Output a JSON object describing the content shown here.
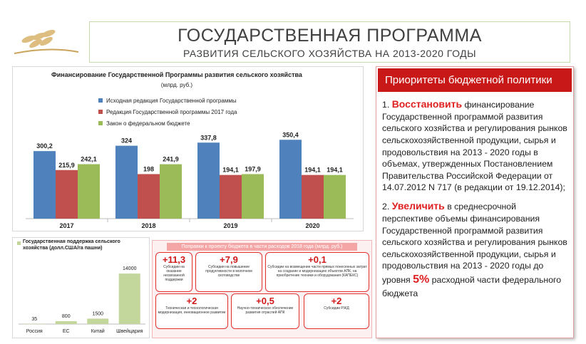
{
  "header": {
    "title": "ГОСУДАРСТВЕННАЯ ПРОГРАММА",
    "subtitle": "РАЗВИТИЯ СЕЛЬСКОГО ХОЗЯЙСТВА НА 2013-2020 ГОДЫ"
  },
  "chart_data": [
    {
      "type": "bar",
      "title": "Финансирование Государственной Программы развития сельского хозяйства",
      "subtitle": "(млрд. руб.)",
      "categories": [
        "2017",
        "2018",
        "2019",
        "2020"
      ],
      "series": [
        {
          "name": "Исходная редакция Государственной программы",
          "color": "#4f81bd",
          "values": [
            300.2,
            324,
            337.8,
            350.4
          ],
          "value_labels": [
            "300,2",
            "324",
            "337,8",
            "350,4"
          ]
        },
        {
          "name": "Редакция Государственной программы 2017 года",
          "color": "#c0504d",
          "values": [
            215.9,
            198,
            194.1,
            194.1
          ],
          "value_labels": [
            "215,9",
            "198",
            "194,1",
            "194,1"
          ]
        },
        {
          "name": "Закон о федеральном бюджете",
          "color": "#9bbb59",
          "values": [
            242.1,
            241.9,
            197.9,
            194.1
          ],
          "value_labels": [
            "242,1",
            "241,9",
            "197,9",
            "194,1"
          ]
        }
      ],
      "ylim": [
        0,
        500
      ]
    },
    {
      "type": "bar",
      "title": "Государственная поддержка сельского хозяйства (долл.США/га пашни)",
      "categories": [
        "Россия",
        "ЕС",
        "Китай",
        "Швейцария"
      ],
      "values": [
        35,
        800,
        1500,
        14000
      ],
      "color": "#c3d69b",
      "ylim": [
        0,
        16000
      ]
    }
  ],
  "amendments": {
    "title": "Поправки к проекту бюджета в части расходов 2018 года (млрд. руб.)",
    "items": [
      {
        "value": "+11,3",
        "text": "Субсидии на оказание несвязанной поддержки"
      },
      {
        "value": "+7,9",
        "text": "Субсидии на повышение продуктивности в молочном скотоводстве"
      },
      {
        "value": "+0,1",
        "text": "Субсидии на возмещение части прямых понесенных затрат на создание и модернизацию объектов АПК, на приобретение техники и оборудования (КАПЕКС)"
      },
      {
        "value": "+2",
        "text": "Техническая и технологическая модернизация, инновационное развитие"
      },
      {
        "value": "+0,5",
        "text": "Научно-техническое обеспечение развития отраслей АПК"
      },
      {
        "value": "+2",
        "text": "Субсидии РЖД"
      }
    ]
  },
  "priorities": {
    "title": "Приоритеты бюджетной политики",
    "items": [
      [
        "1. ",
        "Восстановить",
        " финансирование Государственной программой развития сельского хозяйства и регулирования рынков сельскохозяйственной продукции, сырья и продовольствия на 2013 - 2020 годы в объемах, утвержденных Постановлением Правительства Российской Федерации от 14.07.2012 N 717 (в редакции от 19.12.2014);"
      ],
      [
        "2. ",
        "Увеличить",
        " в среднесрочной перспективе объемы финансирования Государственной программой развития сельского хозяйства и регулирования рынков сельскохозяйственной продукции, сырья и продовольствия на 2013 - 2020 годы до уровня ",
        "5%",
        " расходной части федерального бюджета"
      ]
    ]
  }
}
